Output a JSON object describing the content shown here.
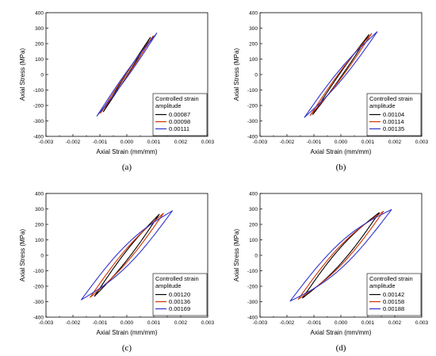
{
  "legend_title_lines": [
    "Controlled strain",
    "amplitude"
  ],
  "chart_data": [
    {
      "type": "line",
      "panel_label": "(a)",
      "xlabel": "Axial Strain (mm/mm)",
      "ylabel": "Axial Stress (MPa)",
      "xlim": [
        -0.003,
        0.003
      ],
      "ylim": [
        -400,
        400
      ],
      "xticks": [
        "-0.003",
        "-0.002",
        "-0.001",
        "0.000",
        "0.001",
        "0.002",
        "0.003"
      ],
      "yticks": [
        "400",
        "300",
        "200",
        "100",
        "0",
        "-100",
        "-200",
        "-300",
        "-400"
      ],
      "legend_title": "Controlled strain amplitude",
      "legend_position": "bottom-right",
      "series": [
        {
          "name": "0.00087",
          "color": "#000000",
          "amplitude": 0.00087,
          "peak_stress": 240,
          "loop_width": 4e-05
        },
        {
          "name": "0.00098",
          "color": "#cc3300",
          "amplitude": 0.00098,
          "peak_stress": 250,
          "loop_width": 6e-05
        },
        {
          "name": "0.00111",
          "color": "#3333cc",
          "amplitude": 0.00111,
          "peak_stress": 268,
          "loop_width": 0.0001
        }
      ]
    },
    {
      "type": "line",
      "panel_label": "(b)",
      "xlabel": "Axial Strain (mm/mm)",
      "ylabel": "Axial Stress (MPa)",
      "xlim": [
        -0.003,
        0.003
      ],
      "ylim": [
        -400,
        400
      ],
      "xticks": [
        "-0.003",
        "-0.002",
        "-0.001",
        "0.000",
        "0.001",
        "0.002",
        "0.003"
      ],
      "yticks": [
        "400",
        "300",
        "200",
        "100",
        "0",
        "-100",
        "-200",
        "-300",
        "-400"
      ],
      "legend_title": "Controlled strain amplitude",
      "legend_position": "bottom-right",
      "series": [
        {
          "name": "0.00104",
          "color": "#000000",
          "amplitude": 0.00104,
          "peak_stress": 258,
          "loop_width": 8e-05
        },
        {
          "name": "0.00114",
          "color": "#cc3300",
          "amplitude": 0.00114,
          "peak_stress": 265,
          "loop_width": 0.00013
        },
        {
          "name": "0.00135",
          "color": "#3333cc",
          "amplitude": 0.00135,
          "peak_stress": 277,
          "loop_width": 0.00024
        }
      ]
    },
    {
      "type": "line",
      "panel_label": "(c)",
      "xlabel": "Axial Strain (mm/mm)",
      "ylabel": "Axial Stress (MPa)",
      "xlim": [
        -0.003,
        0.003
      ],
      "ylim": [
        -400,
        400
      ],
      "xticks": [
        "-0.003",
        "-0.002",
        "-0.001",
        "0.000",
        "0.001",
        "0.002",
        "0.003"
      ],
      "yticks": [
        "400",
        "300",
        "200",
        "100",
        "0",
        "-100",
        "-200",
        "-300",
        "-400"
      ],
      "legend_title": "Controlled strain amplitude",
      "legend_position": "bottom-right",
      "series": [
        {
          "name": "0.00120",
          "color": "#000000",
          "amplitude": 0.0012,
          "peak_stress": 265,
          "loop_width": 0.00018
        },
        {
          "name": "0.00136",
          "color": "#cc3300",
          "amplitude": 0.00136,
          "peak_stress": 272,
          "loop_width": 0.00028
        },
        {
          "name": "0.00169",
          "color": "#3333cc",
          "amplitude": 0.00169,
          "peak_stress": 288,
          "loop_width": 0.00052
        }
      ]
    },
    {
      "type": "line",
      "panel_label": "(d)",
      "xlabel": "Axial Strain (mm/mm)",
      "ylabel": "Axial Stress (MPa)",
      "xlim": [
        -0.003,
        0.003
      ],
      "ylim": [
        -400,
        400
      ],
      "xticks": [
        "-0.003",
        "-0.002",
        "-0.001",
        "0.000",
        "0.001",
        "0.002",
        "0.003"
      ],
      "yticks": [
        "400",
        "300",
        "200",
        "100",
        "0",
        "-100",
        "-200",
        "-300",
        "-400"
      ],
      "legend_title": "Controlled strain amplitude",
      "legend_position": "bottom-right",
      "series": [
        {
          "name": "0.00142",
          "color": "#000000",
          "amplitude": 0.00142,
          "peak_stress": 276,
          "loop_width": 0.00034
        },
        {
          "name": "0.00158",
          "color": "#cc3300",
          "amplitude": 0.00158,
          "peak_stress": 284,
          "loop_width": 0.00045
        },
        {
          "name": "0.00188",
          "color": "#3333cc",
          "amplitude": 0.00188,
          "peak_stress": 296,
          "loop_width": 0.00068
        }
      ]
    }
  ]
}
